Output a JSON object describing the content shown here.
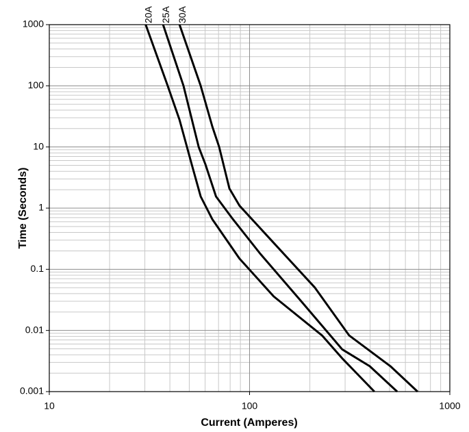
{
  "chart_data": {
    "type": "line",
    "log_x": true,
    "log_y": true,
    "grid": true,
    "minor_grid": true,
    "xlabel": "Current  (Amperes)",
    "ylabel": "Time (Seconds)",
    "xlim": [
      10,
      1000
    ],
    "xticks": [
      10,
      100,
      1000
    ],
    "ylim": [
      0.001,
      1000
    ],
    "yticks": [
      0.001,
      0.01,
      0.1,
      1,
      10,
      100,
      1000
    ],
    "series": [
      {
        "name": "20A",
        "color": "#000000",
        "x": [
          30.3,
          39,
          44.7,
          51.4,
          57,
          65.1,
          89,
          132,
          230,
          290,
          420
        ],
        "y": [
          1000,
          100,
          27.8,
          5.2,
          1.55,
          0.66,
          0.15,
          0.036,
          0.0083,
          0.0035,
          0.001
        ]
      },
      {
        "name": "25A",
        "color": "#000000",
        "x": [
          37,
          46.8,
          55.7,
          60.2,
          68,
          82.5,
          113,
          181,
          290,
          398,
          546
        ],
        "y": [
          1000,
          100,
          10,
          5.2,
          1.55,
          0.66,
          0.18,
          0.03,
          0.0049,
          0.0026,
          0.001
        ]
      },
      {
        "name": "30A",
        "color": "#000000",
        "x": [
          44.7,
          57,
          65.2,
          70.5,
          79.3,
          89,
          132,
          212,
          314,
          505,
          690
        ],
        "y": [
          1000,
          100,
          21.4,
          10,
          2.1,
          1.1,
          0.27,
          0.05,
          0.0083,
          0.0026,
          0.001
        ]
      }
    ]
  }
}
